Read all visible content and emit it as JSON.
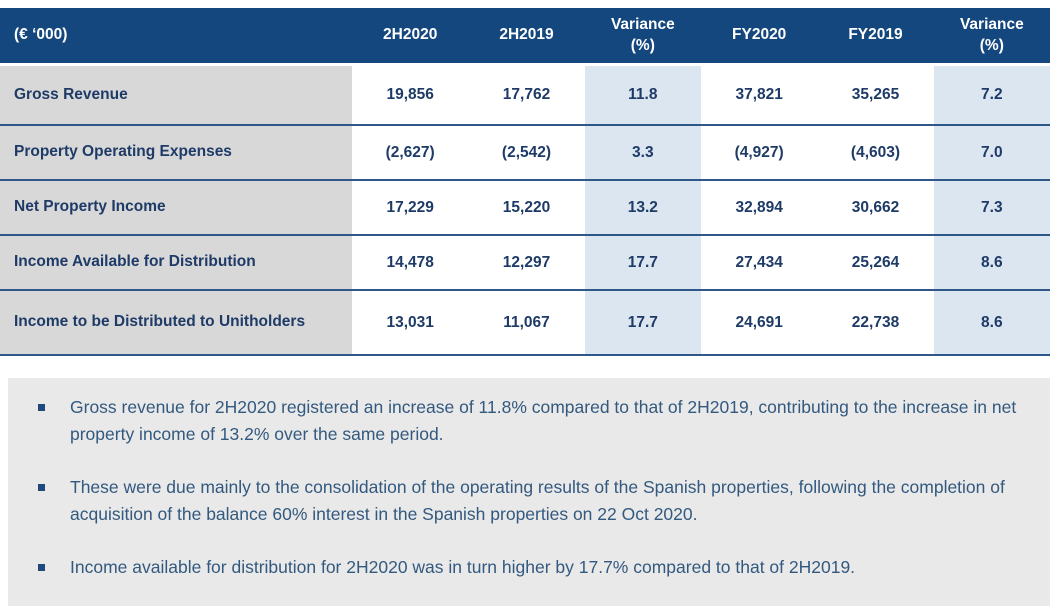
{
  "table": {
    "header": {
      "unit_label": "(€ ‘000)",
      "columns": [
        {
          "line1": "2H2020",
          "line2": ""
        },
        {
          "line1": "2H2019",
          "line2": ""
        },
        {
          "line1": "Variance",
          "line2": "(%)"
        },
        {
          "line1": "FY2020",
          "line2": ""
        },
        {
          "line1": "FY2019",
          "line2": ""
        },
        {
          "line1": "Variance",
          "line2": "(%)"
        }
      ]
    },
    "rows": [
      {
        "label": "Gross Revenue",
        "values": [
          "19,856",
          "17,762",
          "11.8",
          "37,821",
          "35,265",
          "7.2"
        ]
      },
      {
        "label": "Property Operating Expenses",
        "values": [
          "(2,627)",
          "(2,542)",
          "3.3",
          "(4,927)",
          "(4,603)",
          "7.0"
        ]
      },
      {
        "label": "Net Property Income",
        "values": [
          "17,229",
          "15,220",
          "13.2",
          "32,894",
          "30,662",
          "7.3"
        ]
      },
      {
        "label": "Income Available for Distribution",
        "values": [
          "14,478",
          "12,297",
          "17.7",
          "27,434",
          "25,264",
          "8.6"
        ]
      },
      {
        "label": "Income to be Distributed to Unitholders",
        "values": [
          "13,031",
          "11,067",
          "17.7",
          "24,691",
          "22,738",
          "8.6"
        ]
      }
    ]
  },
  "notes": {
    "bullets": [
      "Gross revenue for 2H2020 registered an increase of 11.8% compared to that of 2H2019, contributing to the increase in net property income of 13.2% over the same period.",
      "These were due mainly to the consolidation of the operating results of the Spanish properties, following the completion of acquisition of the balance 60% interest in the Spanish properties on 22 Oct 2020.",
      "Income available for distribution for 2H2020 was in turn higher by 17.7% compared to that of 2H2019."
    ]
  },
  "colors": {
    "header_bg": "#14477D",
    "row_border": "#2F5789",
    "label_col_bg": "#D8D8D8",
    "variance_col_bg": "#DCE6F1",
    "table_text": "#1E3A66",
    "header_text": "#FFFFFF",
    "notes_bg": "#E9E9E9",
    "notes_text": "#33597F",
    "bullet_marker": "#1F497D"
  }
}
